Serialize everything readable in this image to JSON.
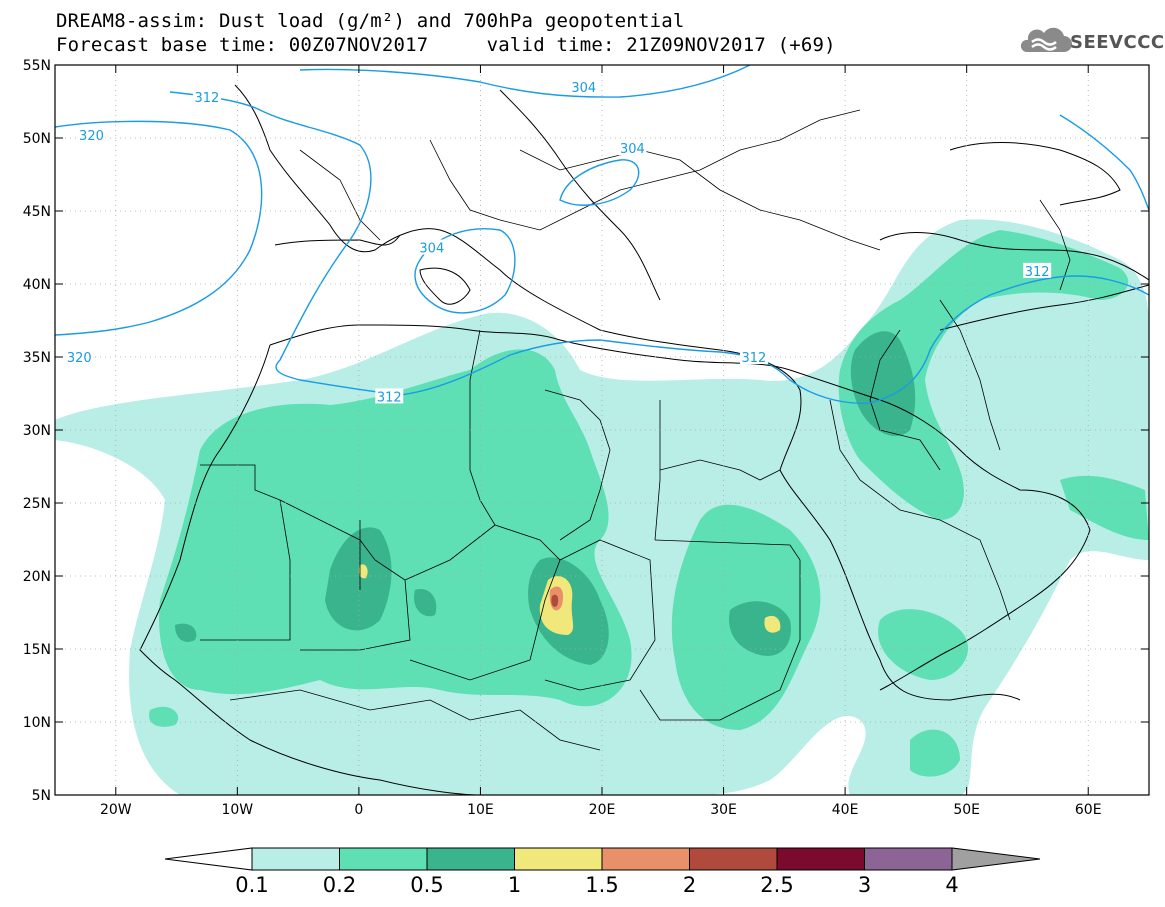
{
  "title": {
    "line1": "DREAM8-assim: Dust load (g/m²) and 700hPa geopotential",
    "line2": "Forecast base time: 00Z07NOV2017     valid time: 21Z09NOV2017 (+69)"
  },
  "logo": {
    "text": "SEEVCCC",
    "icon": "cloud-logo-icon"
  },
  "map": {
    "lon_ticks": [
      {
        "v": -20,
        "label": "20W"
      },
      {
        "v": -10,
        "label": "10W"
      },
      {
        "v": 0,
        "label": "0"
      },
      {
        "v": 10,
        "label": "10E"
      },
      {
        "v": 20,
        "label": "20E"
      },
      {
        "v": 30,
        "label": "30E"
      },
      {
        "v": 40,
        "label": "40E"
      },
      {
        "v": 50,
        "label": "50E"
      },
      {
        "v": 60,
        "label": "60E"
      }
    ],
    "lat_ticks": [
      {
        "v": 55,
        "label": "55N"
      },
      {
        "v": 50,
        "label": "50N"
      },
      {
        "v": 45,
        "label": "45N"
      },
      {
        "v": 40,
        "label": "40N"
      },
      {
        "v": 35,
        "label": "35N"
      },
      {
        "v": 30,
        "label": "30N"
      },
      {
        "v": 25,
        "label": "25N"
      },
      {
        "v": 20,
        "label": "20N"
      },
      {
        "v": 15,
        "label": "15N"
      },
      {
        "v": 10,
        "label": "10N"
      },
      {
        "v": 5,
        "label": "5N"
      }
    ],
    "lon_range": [
      -25,
      65
    ],
    "lat_range": [
      5,
      55
    ],
    "contour_color": "#1a9be6",
    "contour_labels": [
      {
        "text": "312",
        "lon": -12.5,
        "lat": 52.8
      },
      {
        "text": "320",
        "lon": -22,
        "lat": 50.2
      },
      {
        "text": "304",
        "lon": 18.5,
        "lat": 53.5
      },
      {
        "text": "304",
        "lon": 22.5,
        "lat": 49.3
      },
      {
        "text": "304",
        "lon": 6,
        "lat": 42.5
      },
      {
        "text": "320",
        "lon": -23,
        "lat": 35.0
      },
      {
        "text": "312",
        "lon": 2.5,
        "lat": 32.3
      },
      {
        "text": "312",
        "lon": 32.5,
        "lat": 35.0
      },
      {
        "text": "312",
        "lon": 55.8,
        "lat": 40.9
      }
    ]
  },
  "legend": {
    "colors": [
      "#b8eee6",
      "#5ee0b4",
      "#3ab48c",
      "#f0e87a",
      "#e8906a",
      "#b04a3c",
      "#7a0a2e",
      "#8c6496"
    ],
    "labels": [
      "0.1",
      "0.2",
      "0.5",
      "1",
      "1.5",
      "2",
      "2.5",
      "3",
      "4"
    ]
  }
}
